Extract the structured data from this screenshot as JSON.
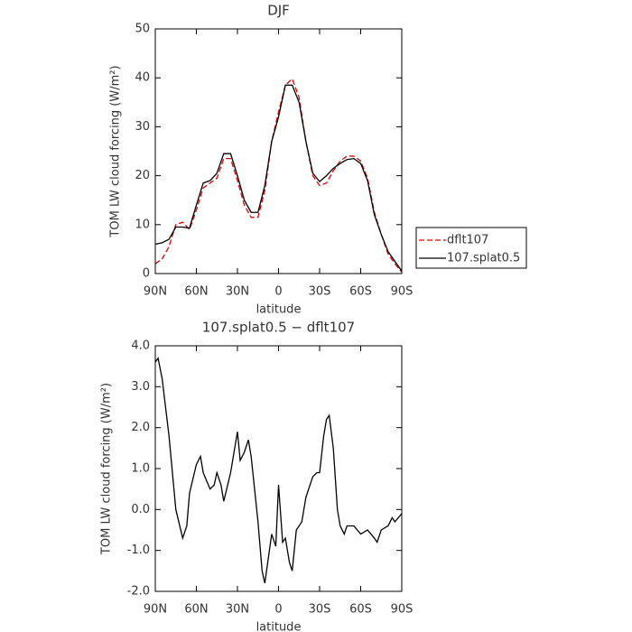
{
  "chart_data": [
    {
      "type": "line",
      "title": "DJF",
      "x_label": "latitude",
      "y_label": "TOM LW cloud forcing (W/m²)",
      "x": [
        90,
        85,
        80,
        75,
        70,
        65,
        60,
        55,
        50,
        45,
        40,
        35,
        30,
        25,
        20,
        15,
        10,
        5,
        0,
        -5,
        -10,
        -15,
        -20,
        -25,
        -30,
        -35,
        -40,
        -45,
        -50,
        -55,
        -60,
        -65,
        -70,
        -75,
        -80,
        -85,
        -90
      ],
      "series": [
        {
          "name": "dflt107",
          "color": "#e00000",
          "line_style": "dashed",
          "values": [
            2,
            3,
            5.5,
            10,
            10.5,
            9,
            13,
            17.5,
            18.5,
            19.5,
            23.5,
            23.5,
            19,
            14,
            11.5,
            11.5,
            17,
            27,
            33,
            38.5,
            39.8,
            36,
            27,
            20,
            18,
            18.5,
            21,
            23,
            24,
            24,
            23,
            19.5,
            12.5,
            8,
            4,
            2,
            0.3
          ]
        },
        {
          "name": "107.splat0.5",
          "color": "#000000",
          "line_style": "solid",
          "values": [
            6,
            6.3,
            7,
            9.5,
            9.5,
            9.3,
            14,
            18.5,
            19,
            20.5,
            24.5,
            24.5,
            20,
            15,
            12.5,
            12.5,
            18,
            27,
            32,
            38.5,
            38.5,
            35,
            27,
            20.5,
            18.8,
            20,
            21.5,
            22.5,
            23.3,
            23.5,
            22.5,
            19,
            12,
            8,
            4.5,
            2.5,
            0.5
          ]
        }
      ],
      "xlim": [
        90,
        -90
      ],
      "xticks": [
        {
          "value": 90,
          "label": "90N"
        },
        {
          "value": 60,
          "label": "60N"
        },
        {
          "value": 30,
          "label": "30N"
        },
        {
          "value": 0,
          "label": "0"
        },
        {
          "value": -30,
          "label": "30S"
        },
        {
          "value": -60,
          "label": "60S"
        },
        {
          "value": -90,
          "label": "90S"
        }
      ],
      "ylim": [
        0,
        50
      ],
      "yticks": [
        0,
        10,
        20,
        30,
        40,
        50
      ]
    },
    {
      "type": "line",
      "title": "107.splat0.5 − dflt107",
      "x_label": "latitude",
      "y_label": "TOM LW cloud forcing (W/m²)",
      "x": [
        90,
        88,
        85,
        80,
        75,
        70,
        67,
        65,
        60,
        57,
        55,
        50,
        47,
        45,
        42,
        40,
        35,
        30,
        28,
        25,
        22,
        20,
        15,
        12,
        10,
        5,
        2,
        0,
        -3,
        -5,
        -8,
        -10,
        -13,
        -17,
        -20,
        -25,
        -28,
        -30,
        -33,
        -35,
        -37,
        -40,
        -43,
        -45,
        -48,
        -50,
        -55,
        -60,
        -65,
        -70,
        -72,
        -75,
        -80,
        -83,
        -85,
        -90
      ],
      "values": [
        3.6,
        3.7,
        3.2,
        1.8,
        0,
        -0.7,
        -0.4,
        0.4,
        1.1,
        1.3,
        0.9,
        0.5,
        0.6,
        0.9,
        0.6,
        0.2,
        0.9,
        1.9,
        1.2,
        1.4,
        1.7,
        1.3,
        -0.3,
        -1.5,
        -1.8,
        -0.6,
        -0.9,
        0.6,
        -0.8,
        -0.7,
        -1.3,
        -1.5,
        -0.5,
        -0.3,
        0.3,
        0.8,
        0.9,
        0.9,
        1.8,
        2.2,
        2.3,
        1.5,
        0,
        -0.4,
        -0.6,
        -0.4,
        -0.4,
        -0.6,
        -0.5,
        -0.7,
        -0.8,
        -0.5,
        -0.4,
        -0.2,
        -0.3,
        -0.1
      ],
      "color": "#000000",
      "xlim": [
        90,
        -90
      ],
      "xticks": [
        {
          "value": 90,
          "label": "90N"
        },
        {
          "value": 60,
          "label": "60N"
        },
        {
          "value": 30,
          "label": "30N"
        },
        {
          "value": 0,
          "label": "0"
        },
        {
          "value": -30,
          "label": "30S"
        },
        {
          "value": -60,
          "label": "60S"
        },
        {
          "value": -90,
          "label": "90S"
        }
      ],
      "ylim": [
        -2,
        4
      ],
      "yticks": [
        {
          "value": -2,
          "label": "-2.0"
        },
        {
          "value": -1,
          "label": "-1.0"
        },
        {
          "value": 0,
          "label": "0.0"
        },
        {
          "value": 1,
          "label": "1.0"
        },
        {
          "value": 2,
          "label": "2.0"
        },
        {
          "value": 3,
          "label": "3.0"
        },
        {
          "value": 4,
          "label": "4.0"
        }
      ]
    }
  ]
}
